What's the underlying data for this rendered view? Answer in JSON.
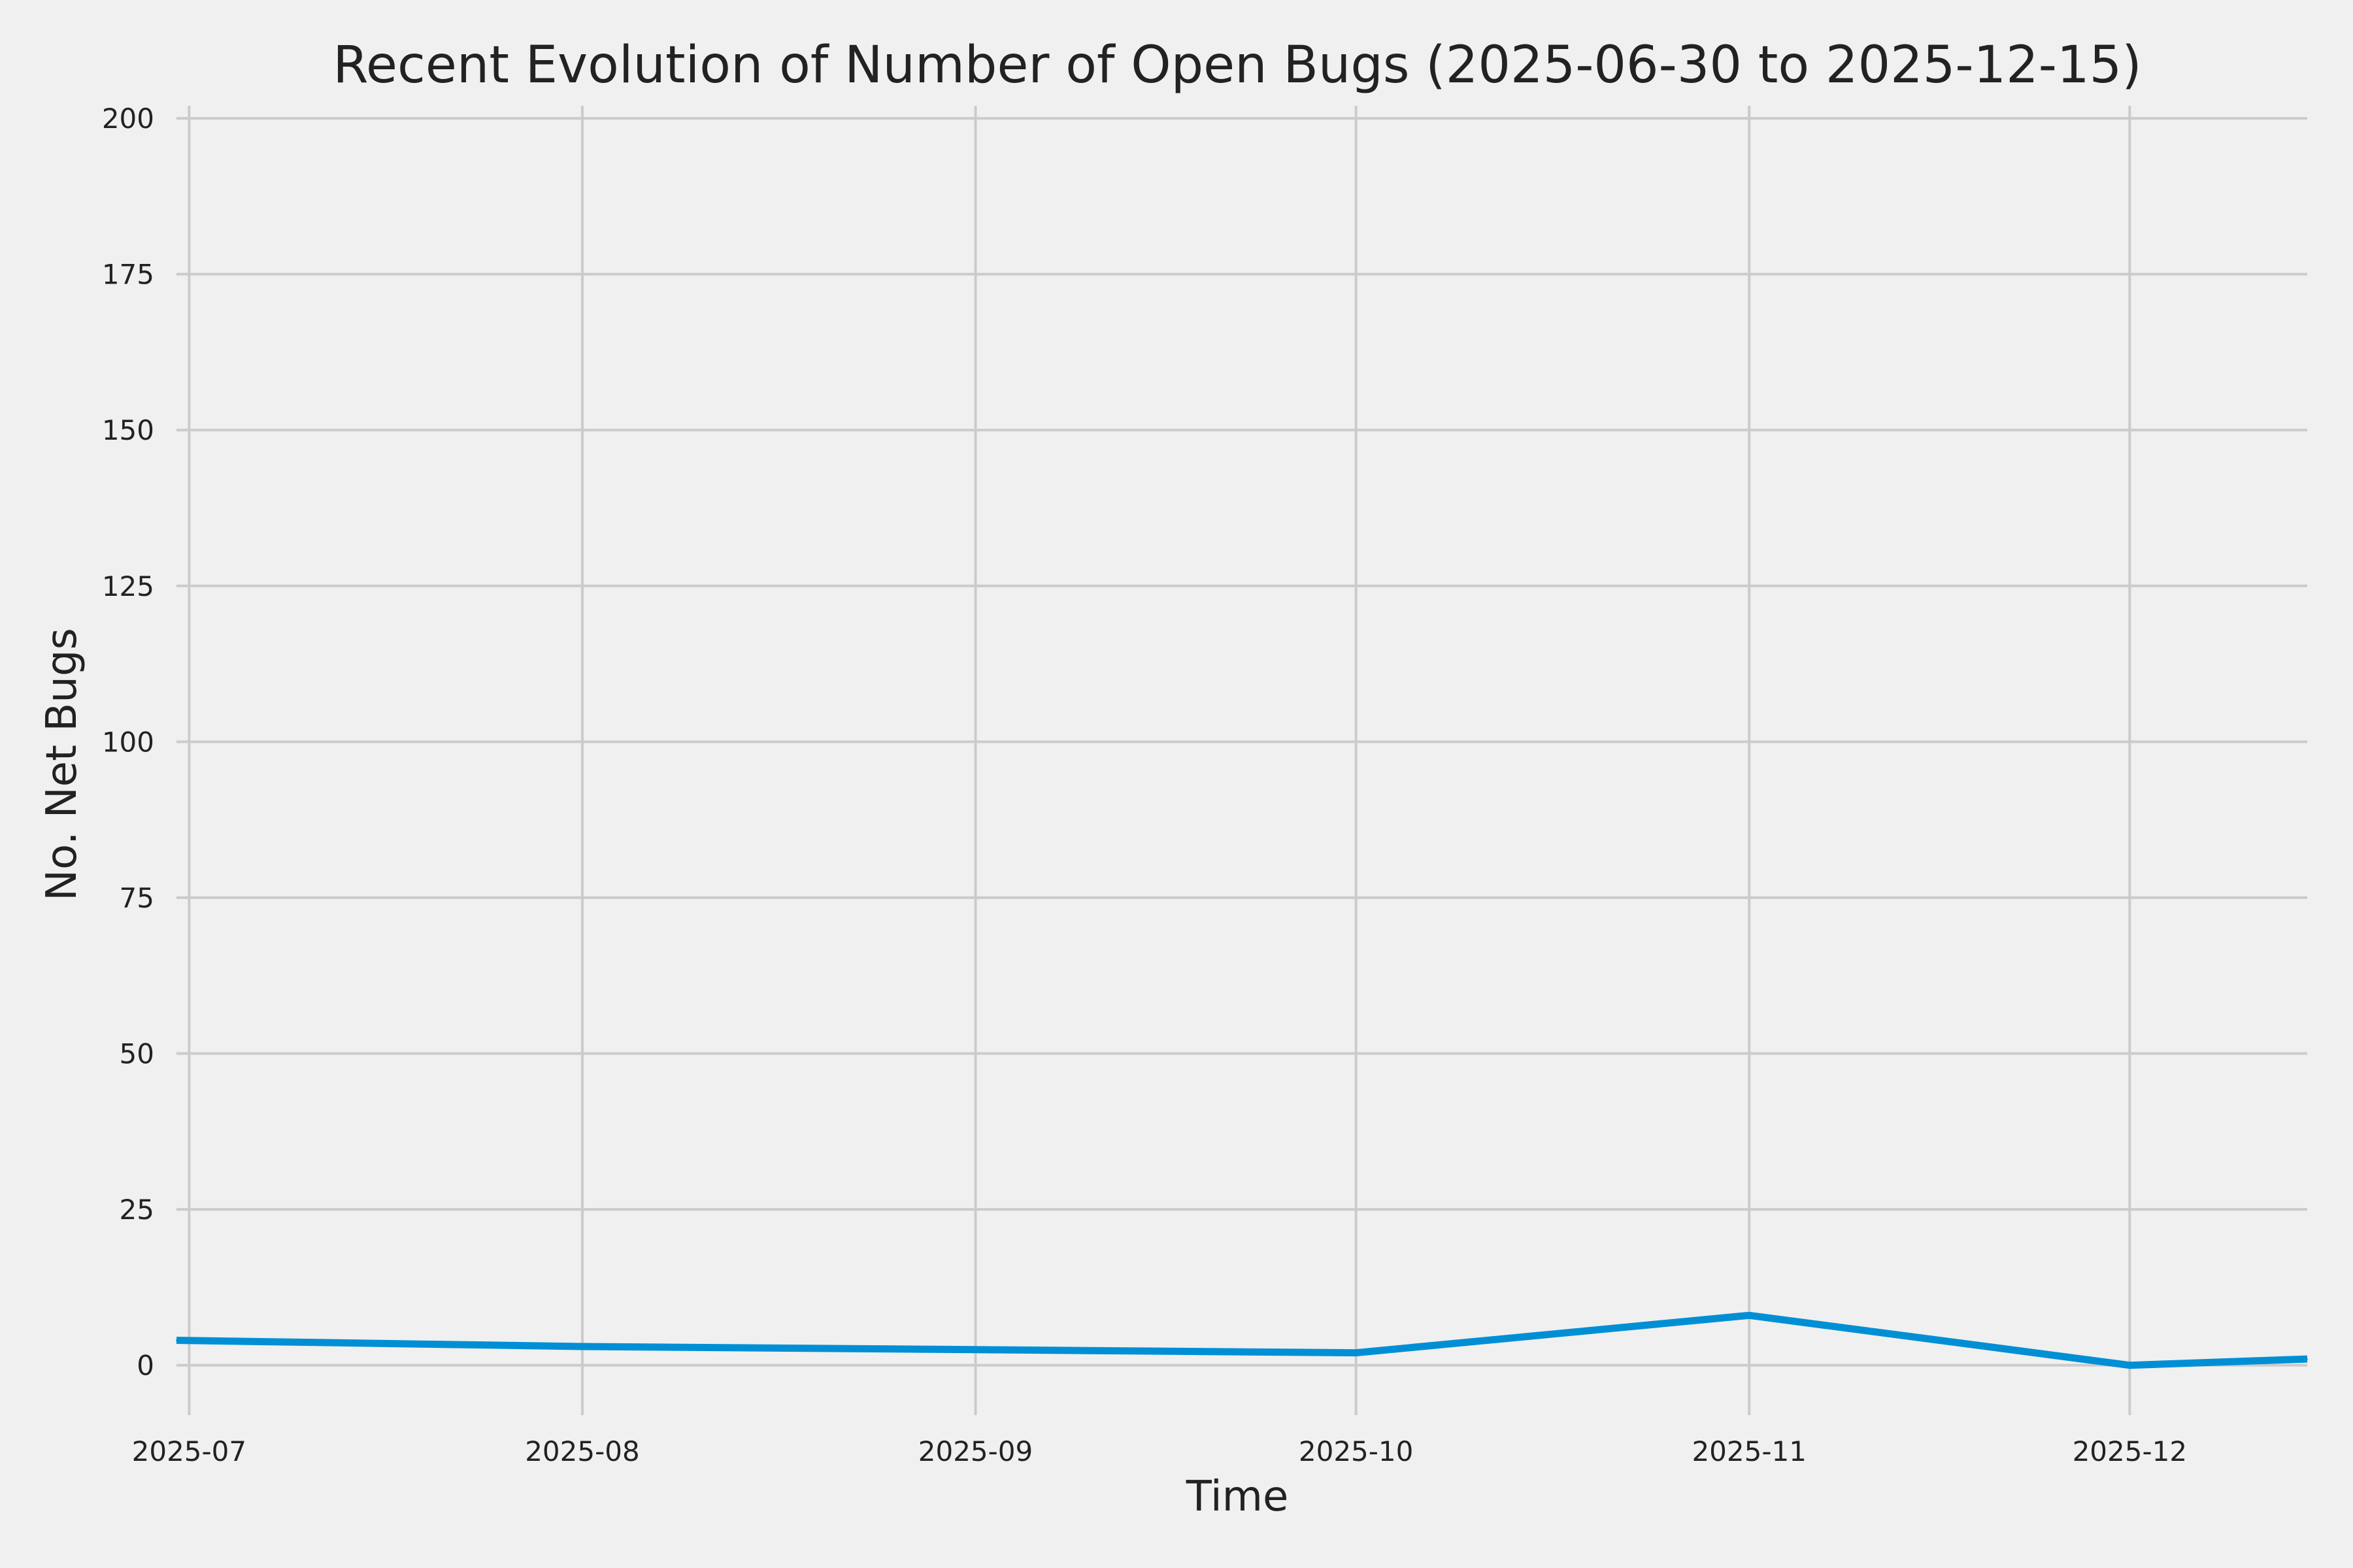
{
  "chart_data": {
    "type": "line",
    "title": "Recent Evolution of Number of Open Bugs (2025-06-30 to 2025-12-15)",
    "xlabel": "Time",
    "ylabel": "No. Net Bugs",
    "xlim": [
      "2025-06-30",
      "2025-12-15"
    ],
    "ylim": [
      -8,
      202
    ],
    "x_ticks": [
      {
        "date": "2025-07-01",
        "label": "2025-07"
      },
      {
        "date": "2025-08-01",
        "label": "2025-08"
      },
      {
        "date": "2025-09-01",
        "label": "2025-09"
      },
      {
        "date": "2025-10-01",
        "label": "2025-10"
      },
      {
        "date": "2025-11-01",
        "label": "2025-11"
      },
      {
        "date": "2025-12-01",
        "label": "2025-12"
      }
    ],
    "y_ticks": [
      0,
      25,
      50,
      75,
      100,
      125,
      150,
      175,
      200
    ],
    "grid": true,
    "line_color": "#008fd5",
    "background_color": "#f0f0f0",
    "series": [
      {
        "x": [
          "2025-06-30",
          "2025-08-01",
          "2025-09-01",
          "2025-10-01",
          "2025-11-01",
          "2025-12-01",
          "2025-12-15"
        ],
        "values": [
          4,
          3,
          2.5,
          2,
          8,
          0,
          1
        ]
      }
    ]
  }
}
